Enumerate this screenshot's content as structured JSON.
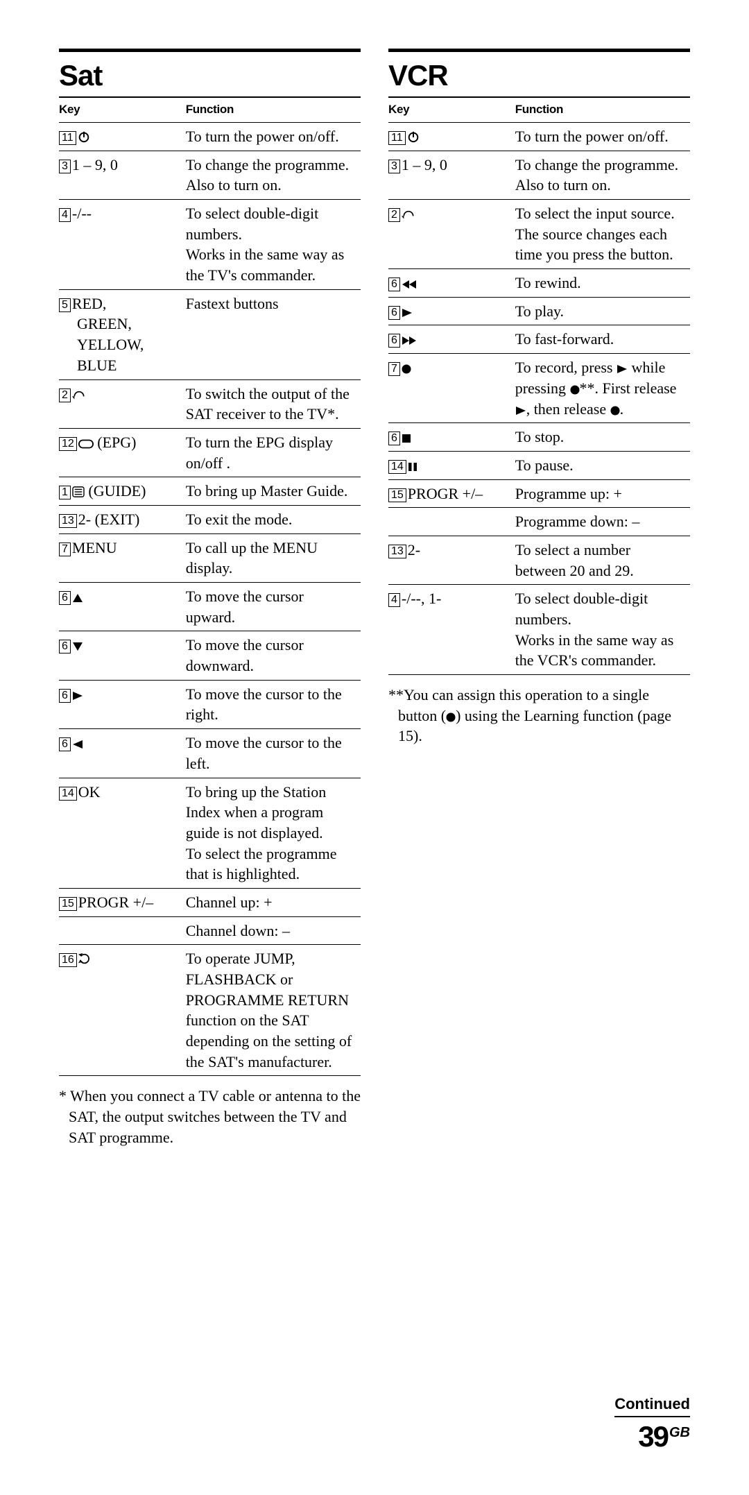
{
  "page": {
    "continued": "Continued",
    "number": "39",
    "suffix": "GB"
  },
  "sat": {
    "title": "Sat",
    "headers": {
      "key": "Key",
      "func": "Function"
    },
    "rows": [
      {
        "num": "11",
        "icon": "power",
        "label": "",
        "func": "To turn the power on/off."
      },
      {
        "num": "3",
        "icon": "",
        "label": "1 – 9, 0",
        "func": "To change the programme.\nAlso to turn on."
      },
      {
        "num": "4",
        "icon": "",
        "label": "-/--",
        "func": "To select double-digit numbers.\nWorks in the same way as the TV's commander."
      },
      {
        "num": "5",
        "icon": "",
        "label": "RED,",
        "indent_lines": [
          "GREEN,",
          "YELLOW,",
          "BLUE"
        ],
        "func": "Fastext buttons"
      },
      {
        "num": "2",
        "icon": "input",
        "label": "",
        "func": "To switch the output of the SAT receiver to the TV*."
      },
      {
        "num": "12",
        "icon": "oval",
        "label": " (EPG)",
        "func": "To turn the EPG display on/off ."
      },
      {
        "num": "1",
        "icon": "lines",
        "label": " (GUIDE)",
        "func": "To bring up Master Guide."
      },
      {
        "num": "13",
        "icon": "",
        "label": "2- (EXIT)",
        "func": "To exit the mode."
      },
      {
        "num": "7",
        "icon": "",
        "label": "MENU",
        "func": "To call up the MENU display."
      },
      {
        "num": "6",
        "icon": "up",
        "label": "",
        "func": "To move the cursor upward."
      },
      {
        "num": "6",
        "icon": "down",
        "label": "",
        "func": "To move the cursor downward."
      },
      {
        "num": "6",
        "icon": "play",
        "label": "",
        "func": "To move the cursor to the right."
      },
      {
        "num": "6",
        "icon": "left",
        "label": "",
        "func": "To move the cursor to the left."
      },
      {
        "num": "14",
        "icon": "",
        "label": "OK",
        "func": "To bring up the Station Index when a program guide is not displayed.\nTo select the programme that is highlighted."
      },
      {
        "num": "15",
        "icon": "",
        "label": "PROGR +/–",
        "func": "Channel up: +",
        "subrows": [
          "Channel down: –"
        ]
      },
      {
        "num": "16",
        "icon": "jump",
        "label": "",
        "func": "To operate JUMP, FLASHBACK or PROGRAMME RETURN function on the SAT depending on the setting of the SAT's manufacturer."
      }
    ],
    "footnote": "*  When you connect a TV cable or antenna to the SAT, the output switches between the TV and SAT programme."
  },
  "vcr": {
    "title": "VCR",
    "headers": {
      "key": "Key",
      "func": "Function"
    },
    "rows": [
      {
        "num": "11",
        "icon": "power",
        "label": "",
        "func": "To turn the power on/off."
      },
      {
        "num": "3",
        "icon": "",
        "label": "1 – 9, 0",
        "func": "To change the programme.\nAlso to turn on."
      },
      {
        "num": "2",
        "icon": "input",
        "label": "",
        "func": "To select the input source. The source changes each time you press the button."
      },
      {
        "num": "6",
        "icon": "rew",
        "label": "",
        "func": "To rewind."
      },
      {
        "num": "6",
        "icon": "play",
        "label": "",
        "func": "To play."
      },
      {
        "num": "6",
        "icon": "ff",
        "label": "",
        "func": "To fast-forward."
      },
      {
        "num": "7",
        "icon": "rec",
        "label": "",
        "func_html": "record"
      },
      {
        "num": "6",
        "icon": "stop",
        "label": "",
        "func": "To stop."
      },
      {
        "num": "14",
        "icon": "pause",
        "label": "",
        "func": "To pause."
      },
      {
        "num": "15",
        "icon": "",
        "label": "PROGR +/–",
        "func": "Programme up: +",
        "subrows": [
          "Programme down: –"
        ]
      },
      {
        "num": "13",
        "icon": "",
        "label": "2-",
        "func": "To select a number between 20 and 29."
      },
      {
        "num": "4",
        "icon": "",
        "label": "-/--, 1-",
        "func": "To select double-digit numbers.\nWorks in the same way as the VCR's commander."
      }
    ],
    "footnote_html": "vcr_foot"
  },
  "text": {
    "vcr_record": "To record, press {play} while pressing {rec}**. First release {play}, then release {rec}.",
    "vcr_foot": "**You can assign this operation to a single button ({rec}) using the Learning function (page 15)."
  }
}
